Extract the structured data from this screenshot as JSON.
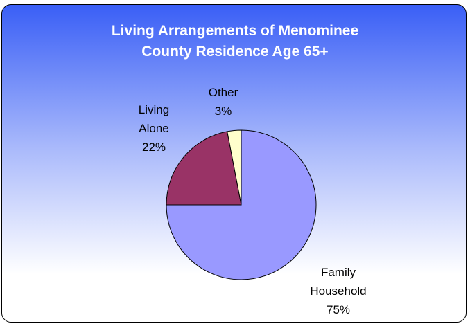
{
  "chart_data": {
    "type": "pie",
    "title": "Living Arrangements of Menominee County Residence Age 65+",
    "categories": [
      "Family Household",
      "Living Alone",
      "Other"
    ],
    "values": [
      75,
      22,
      3
    ],
    "value_labels": [
      "75%",
      "22%",
      "3%"
    ],
    "colors": [
      "#9999ff",
      "#993366",
      "#ffffcc"
    ]
  }
}
